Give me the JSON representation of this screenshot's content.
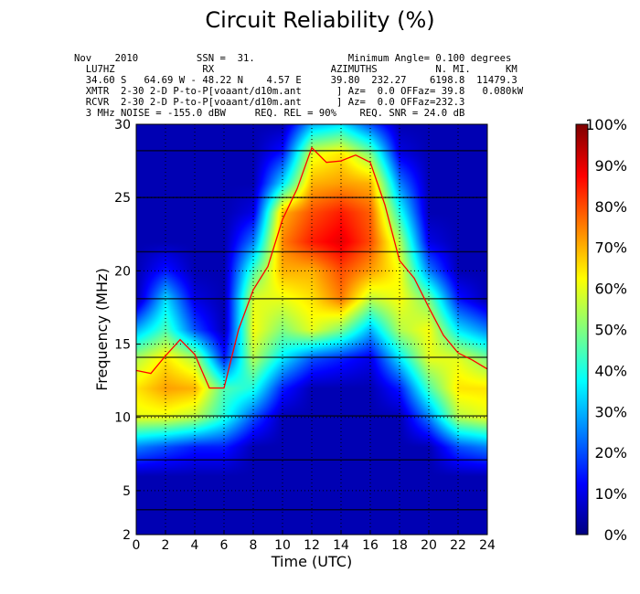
{
  "chart_data": {
    "type": "heatmap",
    "title": "Circuit Reliability (%)",
    "header_lines": [
      "Nov    2010          SSN =  31.                Minimum Angle= 0.100 degrees",
      "  LU7HZ               RX                    AZIMUTHS          N. MI.      KM",
      "  34.60 S   64.69 W - 48.22 N    4.57 E     39.80  232.27    6198.8  11479.3",
      "  XMTR  2-30 2-D P-to-P[voaant/d10m.ant      ] Az=  0.0 OFFaz= 39.8   0.080kW",
      "  RCVR  2-30 2-D P-to-P[voaant/d10m.ant      ] Az=  0.0 OFFaz=232.3",
      "  3 MHz NOISE = -155.0 dBW     REQ. REL = 90%    REQ. SNR = 24.0 dB"
    ],
    "xlabel": "Time (UTC)",
    "ylabel": "Frequency (MHz)",
    "xlim": [
      0,
      24
    ],
    "ylim": [
      2,
      30
    ],
    "xticks": [
      "0",
      "2",
      "4",
      "6",
      "8",
      "10",
      "12",
      "14",
      "16",
      "18",
      "20",
      "22",
      "24"
    ],
    "yticks": [
      "2",
      "5",
      "10",
      "15",
      "20",
      "25",
      "30"
    ],
    "colorbar": {
      "range": [
        0,
        100
      ],
      "ticks": [
        "0%",
        "10%",
        "20%",
        "30%",
        "40%",
        "50%",
        "60%",
        "70%",
        "80%",
        "90%",
        "100%"
      ],
      "colormap": "jet"
    },
    "grid": true,
    "hours": [
      0,
      2,
      4,
      6,
      8,
      10,
      12,
      14,
      16,
      18,
      20,
      22,
      24
    ],
    "freqs": [
      2,
      4,
      6,
      8,
      10,
      12,
      14,
      16,
      18,
      20,
      22,
      24,
      26,
      28,
      30
    ],
    "reliability": [
      [
        5,
        5,
        5,
        5,
        5,
        5,
        5,
        5,
        5,
        5,
        5,
        5,
        5
      ],
      [
        5,
        5,
        5,
        5,
        5,
        5,
        5,
        5,
        5,
        5,
        5,
        5,
        5
      ],
      [
        5,
        5,
        5,
        5,
        5,
        5,
        5,
        5,
        5,
        5,
        5,
        5,
        5
      ],
      [
        25,
        20,
        15,
        15,
        5,
        5,
        5,
        5,
        5,
        5,
        5,
        20,
        25
      ],
      [
        60,
        60,
        55,
        40,
        20,
        5,
        5,
        5,
        5,
        5,
        25,
        55,
        60
      ],
      [
        65,
        72,
        70,
        45,
        40,
        15,
        5,
        5,
        5,
        15,
        45,
        65,
        65
      ],
      [
        55,
        65,
        55,
        15,
        55,
        35,
        20,
        15,
        10,
        35,
        60,
        60,
        50
      ],
      [
        30,
        45,
        20,
        5,
        62,
        50,
        60,
        50,
        30,
        55,
        62,
        35,
        25
      ],
      [
        5,
        35,
        10,
        5,
        60,
        60,
        65,
        75,
        55,
        62,
        50,
        15,
        5
      ],
      [
        5,
        15,
        5,
        5,
        45,
        70,
        70,
        80,
        72,
        62,
        25,
        5,
        5
      ],
      [
        5,
        5,
        5,
        5,
        25,
        75,
        85,
        90,
        80,
        55,
        10,
        5,
        5
      ],
      [
        5,
        5,
        5,
        5,
        10,
        70,
        80,
        85,
        78,
        40,
        5,
        5,
        5
      ],
      [
        5,
        5,
        5,
        5,
        5,
        35,
        70,
        72,
        70,
        25,
        5,
        5,
        5
      ],
      [
        5,
        5,
        5,
        5,
        5,
        15,
        60,
        65,
        50,
        10,
        5,
        5,
        5
      ],
      [
        5,
        5,
        5,
        5,
        5,
        5,
        30,
        35,
        20,
        5,
        5,
        5,
        5
      ]
    ],
    "frequency_lines": [
      3.7,
      7.1,
      10.1,
      14.1,
      18.1,
      21.3,
      25.0,
      28.2
    ],
    "muf_line": {
      "color": "#ff0000",
      "x": [
        0,
        1,
        2,
        3,
        4,
        5,
        6,
        7,
        8,
        9,
        10,
        11,
        12,
        13,
        14,
        15,
        16,
        17,
        18,
        19,
        20,
        21,
        22,
        23,
        24
      ],
      "y": [
        13.2,
        13.0,
        14.2,
        15.3,
        14.3,
        12.0,
        12.0,
        16.0,
        18.7,
        20.3,
        23.5,
        25.6,
        28.4,
        27.4,
        27.5,
        27.9,
        27.4,
        24.5,
        20.7,
        19.5,
        17.5,
        15.6,
        14.4,
        13.9,
        13.3
      ]
    }
  }
}
